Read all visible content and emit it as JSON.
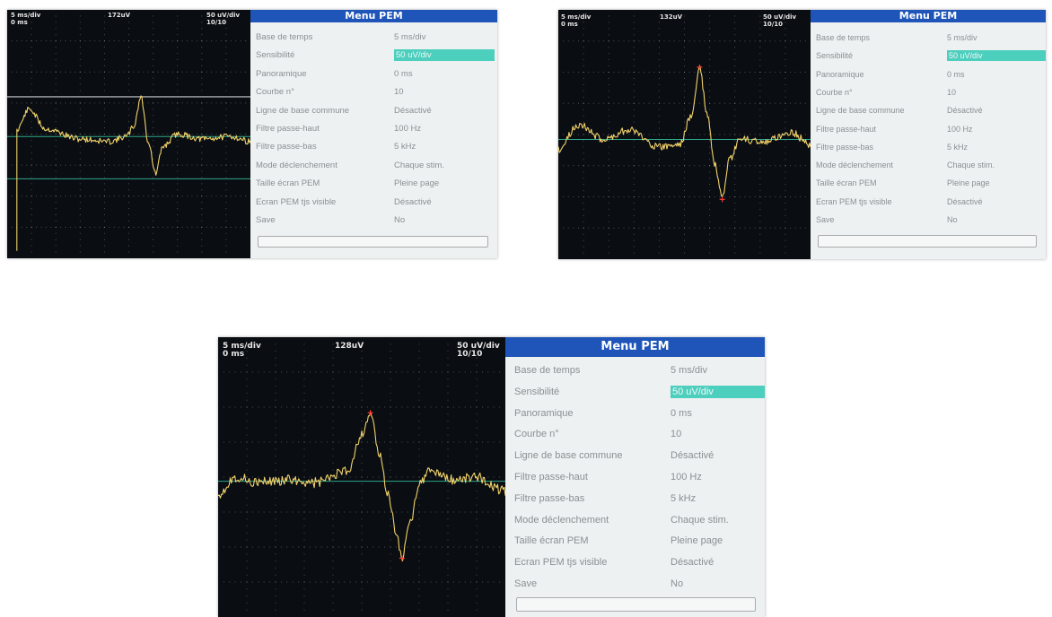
{
  "screens": [
    {
      "id": "screen-1",
      "timebase": "5 ms/div",
      "offset": "0 ms",
      "amplitude": "172uV",
      "sensitivity": "50 uV/div",
      "count": "10/10",
      "menu_title": "Menu PEM",
      "menu": [
        {
          "label": "Base de temps",
          "value": "5 ms/div"
        },
        {
          "label": "Sensibilité",
          "value": "50 uV/div",
          "selected": true
        },
        {
          "label": "Panoramique",
          "value": "0 ms"
        },
        {
          "label": "Courbe n°",
          "value": "10"
        },
        {
          "label": "Ligne de base commune",
          "value": "Désactivé"
        },
        {
          "label": "Filtre passe-haut",
          "value": "100 Hz"
        },
        {
          "label": "Filtre passe-bas",
          "value": "5 kHz"
        },
        {
          "label": "Mode déclenchement",
          "value": "Chaque stim."
        },
        {
          "label": "Taille écran PEM",
          "value": "Pleine page"
        },
        {
          "label": "Ecran PEM tjs visible",
          "value": "Désactivé"
        },
        {
          "label": "Save",
          "value": "No"
        }
      ]
    },
    {
      "id": "screen-2",
      "timebase": "5 ms/div",
      "offset": "0 ms",
      "amplitude": "132uV",
      "sensitivity": "50 uV/div",
      "count": "10/10",
      "menu_title": "Menu PEM",
      "menu": [
        {
          "label": "Base de temps",
          "value": "5 ms/div"
        },
        {
          "label": "Sensibilité",
          "value": "50 uV/div",
          "selected": true
        },
        {
          "label": "Panoramique",
          "value": "0 ms"
        },
        {
          "label": "Courbe n°",
          "value": "10"
        },
        {
          "label": "Ligne de base commune",
          "value": "Désactivé"
        },
        {
          "label": "Filtre passe-haut",
          "value": "100 Hz"
        },
        {
          "label": "Filtre passe-bas",
          "value": "5 kHz"
        },
        {
          "label": "Mode déclenchement",
          "value": "Chaque stim."
        },
        {
          "label": "Taille écran PEM",
          "value": "Pleine page"
        },
        {
          "label": "Ecran PEM tjs visible",
          "value": "Désactivé"
        },
        {
          "label": "Save",
          "value": "No"
        }
      ]
    },
    {
      "id": "screen-3",
      "timebase": "5 ms/div",
      "offset": "0 ms",
      "amplitude": "128uV",
      "sensitivity": "50 uV/div",
      "count": "10/10",
      "menu_title": "Menu PEM",
      "menu": [
        {
          "label": "Base de temps",
          "value": "5 ms/div"
        },
        {
          "label": "Sensibilité",
          "value": "50 uV/div",
          "selected": true
        },
        {
          "label": "Panoramique",
          "value": "0 ms"
        },
        {
          "label": "Courbe n°",
          "value": "10"
        },
        {
          "label": "Ligne de base commune",
          "value": "Désactivé"
        },
        {
          "label": "Filtre passe-haut",
          "value": "100 Hz"
        },
        {
          "label": "Filtre passe-bas",
          "value": "5 kHz"
        },
        {
          "label": "Mode déclenchement",
          "value": "Chaque stim."
        },
        {
          "label": "Taille écran PEM",
          "value": "Pleine page"
        },
        {
          "label": "Ecran PEM tjs visible",
          "value": "Désactivé"
        },
        {
          "label": "Save",
          "value": "No"
        }
      ]
    }
  ],
  "colors": {
    "trace": "#f2d36b",
    "baseline": "#2fa98c",
    "grid_dot": "#7f8a96",
    "marker": "#ff3b30",
    "menu_title_bg": "#1f55b8",
    "selected_bg": "#4dcfbe"
  }
}
